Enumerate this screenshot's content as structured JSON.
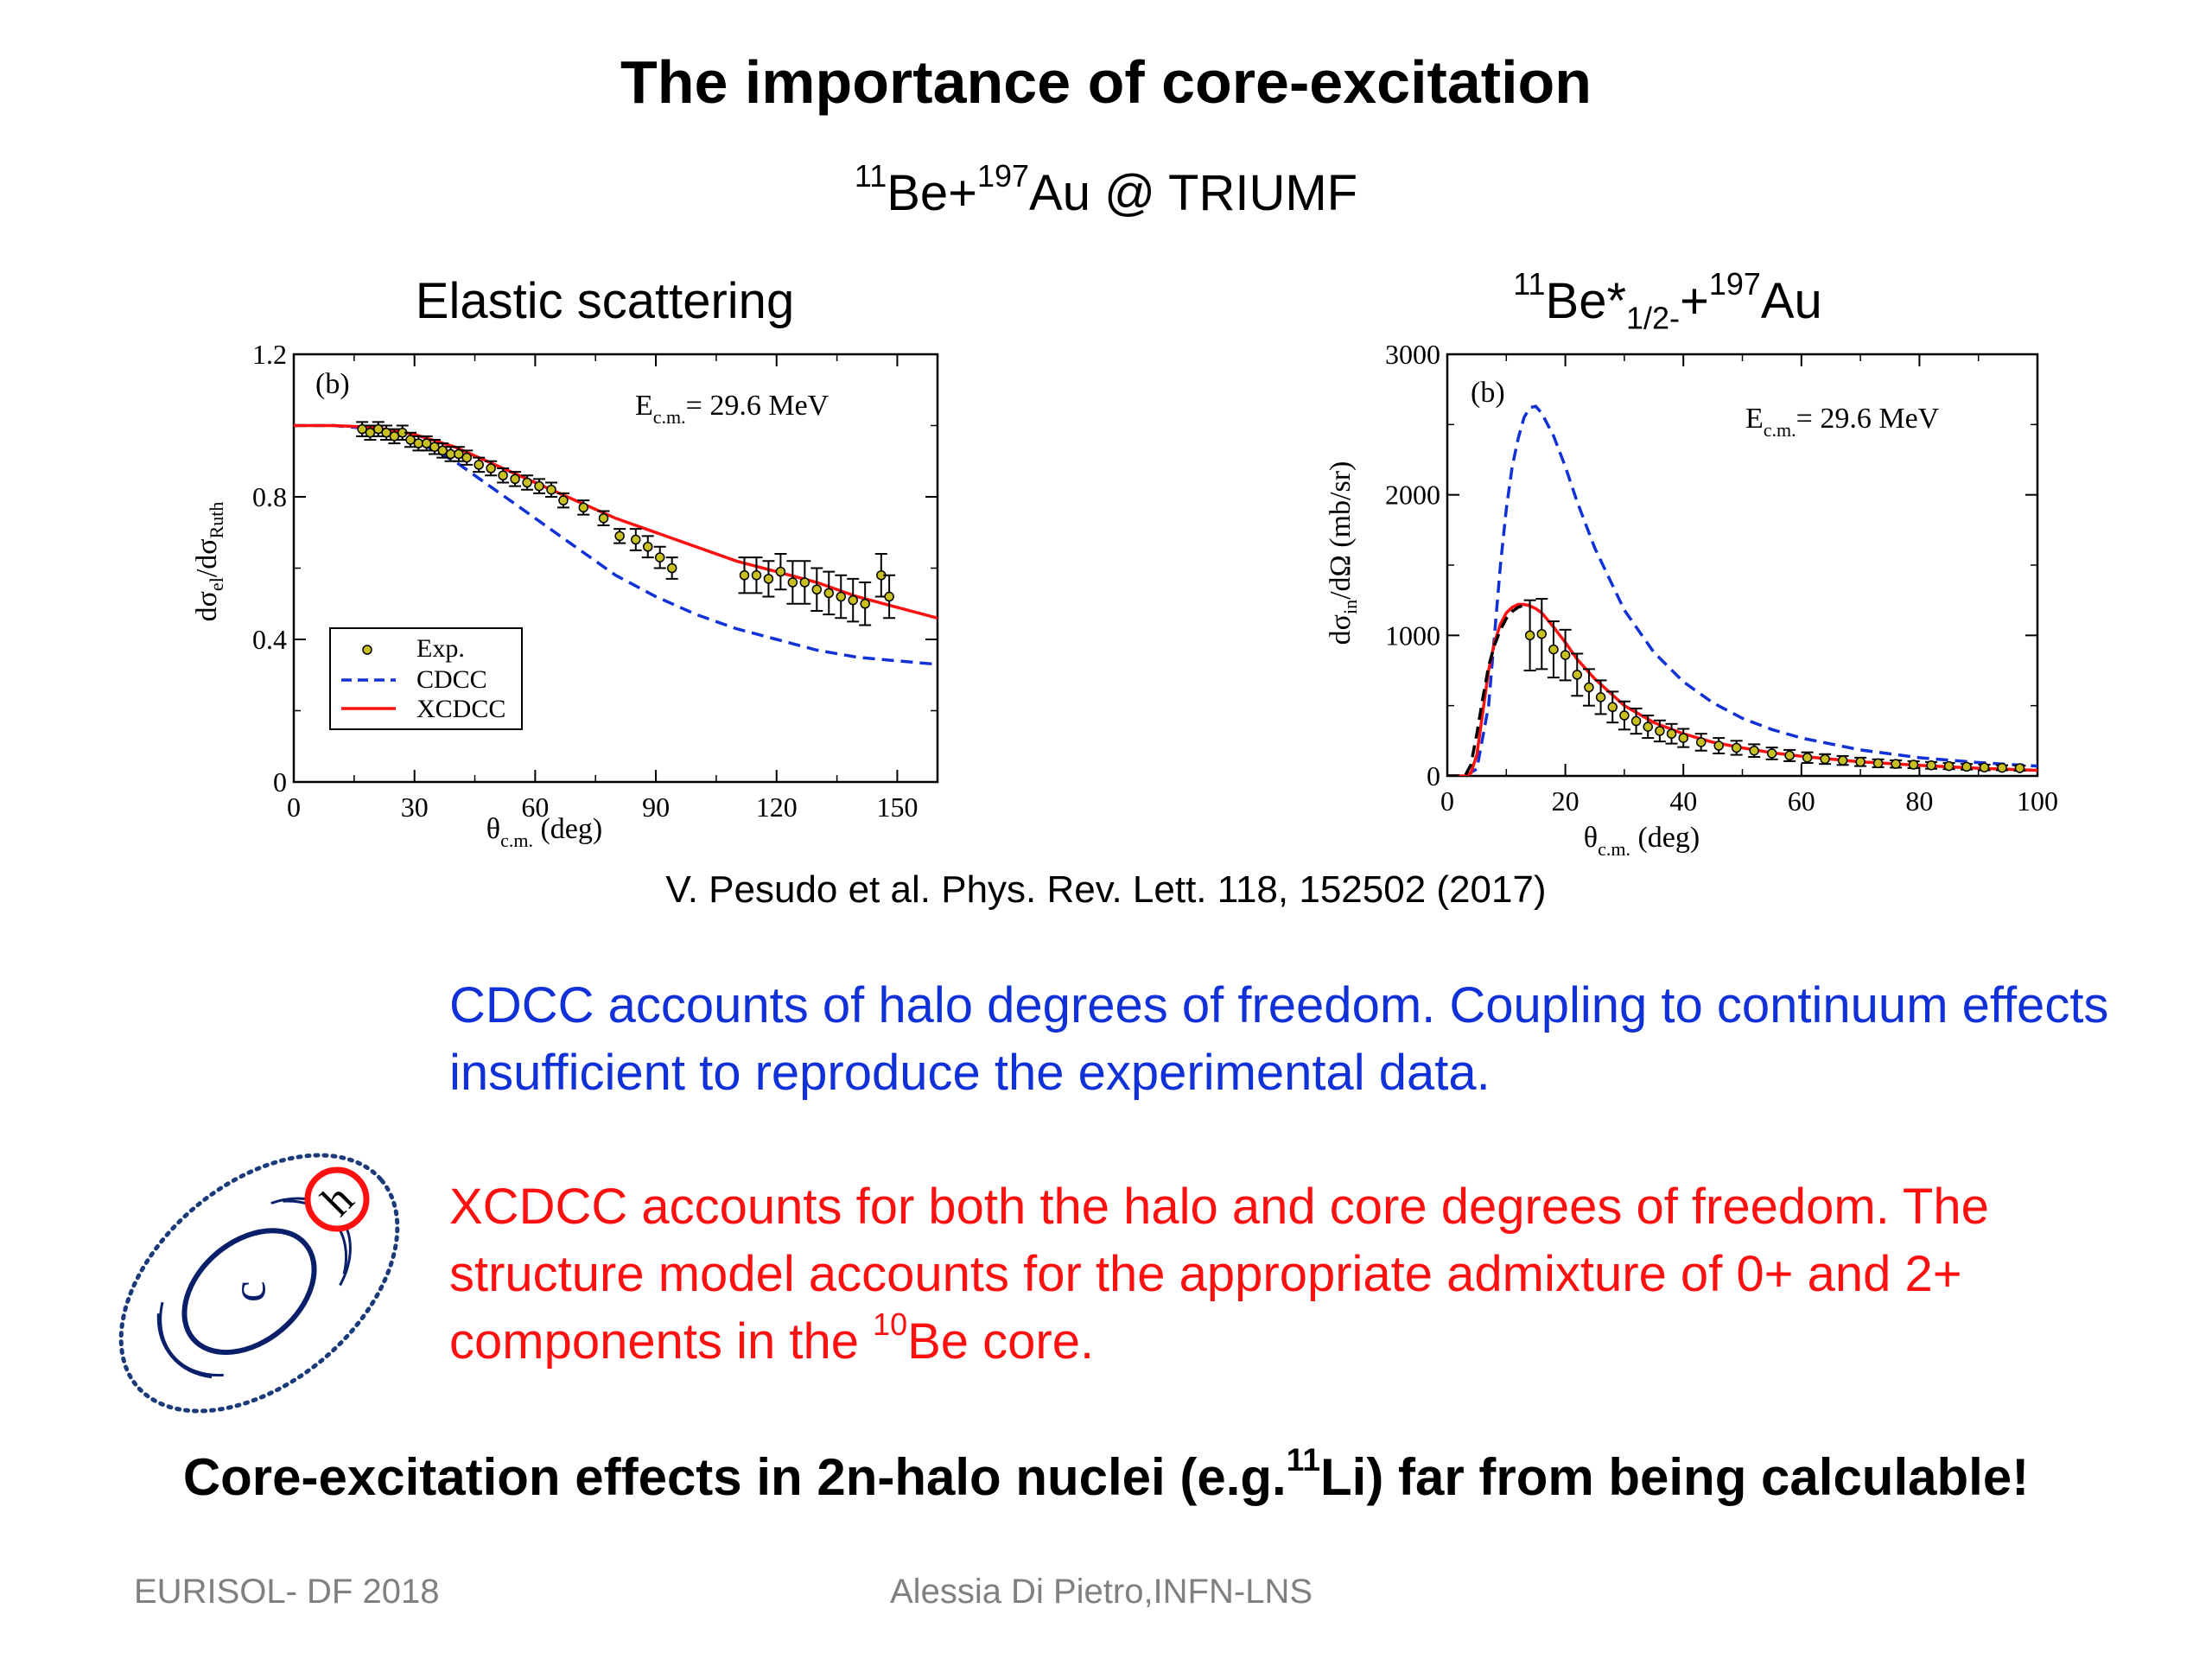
{
  "slide": {
    "title": "The importance of core-excitation",
    "subtitle": {
      "n1": "11",
      "e1": "Be+",
      "n2": "197",
      "e2": "Au @ TRIUMF"
    },
    "left_panel_title": "Elastic scattering",
    "right_panel_title": {
      "n1": "11",
      "e1": "Be*",
      "sub": "1/2-",
      "e2": "+",
      "n2": "197",
      "e3": "Au"
    },
    "reference": "V. Pesudo et al. Phys. Rev. Lett. 118, 152502 (2017)",
    "cdcc_text": "CDCC accounts of halo degrees of freedom. Coupling to continuum effects insufficient to reproduce the experimental data.",
    "xcdcc_text_a": "XCDCC accounts for both the halo and core degrees of freedom. The structure model accounts for the appropriate admixture of 0+ and 2+ components in the ",
    "xcdcc_text_sup": "10",
    "xcdcc_text_b": "Be core.",
    "conclusion_a": "Core-excitation effects in 2n-halo nuclei (e.g.",
    "conclusion_sup": "11",
    "conclusion_b": "Li)  far from being calculable!",
    "footer_left": "EURISOL- DF 2018",
    "footer_center": "Alessia Di Pietro,INFN-LNS",
    "diagram": {
      "core_label": "c",
      "halo_label": "h"
    },
    "colors": {
      "cdcc": "#1030d8",
      "xcdcc": "#ff1010",
      "footer": "#808080",
      "exp_marker": "#c8c020"
    }
  },
  "chart_data": [
    {
      "type": "line",
      "panel_label": "(b)",
      "annotation": {
        "main": "E",
        "sub": "c.m.",
        "rest": "= 29.6 MeV"
      },
      "xlabel": {
        "main": "θ",
        "sub": "c.m.",
        "rest": " (deg)"
      },
      "ylabel": {
        "a": "dσ",
        "sub1": "el",
        "b": "/dσ",
        "sub2": "Ruth"
      },
      "xlim": [
        0,
        160
      ],
      "ylim": [
        0,
        1.2
      ],
      "xticks": [
        0,
        30,
        60,
        90,
        120,
        150
      ],
      "yticks": [
        0,
        0.4,
        0.8,
        1.2
      ],
      "ytick_labels": [
        "0",
        "0.4",
        "0.8",
        "1.2"
      ],
      "legend": {
        "placement": "bottom-left",
        "entries": [
          "Exp.",
          "CDCC",
          "XCDCC"
        ]
      },
      "series": [
        {
          "name": "CDCC",
          "style": "dashed",
          "color": "#1030d8",
          "x": [
            0,
            10,
            20,
            30,
            40,
            50,
            60,
            70,
            80,
            90,
            100,
            110,
            120,
            130,
            140,
            150,
            160
          ],
          "y": [
            1.0,
            1.0,
            0.99,
            0.96,
            0.9,
            0.82,
            0.74,
            0.66,
            0.58,
            0.52,
            0.47,
            0.43,
            0.4,
            0.37,
            0.35,
            0.34,
            0.33
          ]
        },
        {
          "name": "XCDCC",
          "style": "solid",
          "color": "#ff1010",
          "x": [
            0,
            10,
            20,
            30,
            40,
            50,
            60,
            70,
            80,
            90,
            100,
            110,
            120,
            130,
            140,
            150,
            160
          ],
          "y": [
            1.0,
            1.0,
            0.995,
            0.975,
            0.94,
            0.89,
            0.84,
            0.79,
            0.74,
            0.7,
            0.66,
            0.62,
            0.59,
            0.56,
            0.52,
            0.49,
            0.46
          ]
        },
        {
          "name": "Exp.",
          "style": "markers",
          "color": "#c8c020",
          "x": [
            17,
            19,
            21,
            23,
            25,
            27,
            29,
            31,
            33,
            35,
            37,
            39,
            41,
            43,
            46,
            49,
            52,
            55,
            58,
            61,
            64,
            67,
            72,
            77,
            81,
            85,
            88,
            91,
            94,
            112,
            115,
            118,
            121,
            124,
            127,
            130,
            133,
            136,
            139,
            142,
            146,
            148
          ],
          "y": [
            0.99,
            0.98,
            0.99,
            0.98,
            0.97,
            0.98,
            0.96,
            0.95,
            0.95,
            0.94,
            0.93,
            0.92,
            0.92,
            0.91,
            0.89,
            0.88,
            0.86,
            0.85,
            0.84,
            0.83,
            0.82,
            0.79,
            0.77,
            0.74,
            0.69,
            0.68,
            0.66,
            0.63,
            0.6,
            0.58,
            0.58,
            0.57,
            0.59,
            0.56,
            0.56,
            0.54,
            0.53,
            0.52,
            0.51,
            0.5,
            0.58,
            0.52
          ],
          "err": [
            0.02,
            0.02,
            0.02,
            0.02,
            0.02,
            0.02,
            0.02,
            0.02,
            0.02,
            0.02,
            0.02,
            0.02,
            0.02,
            0.02,
            0.02,
            0.02,
            0.02,
            0.02,
            0.02,
            0.02,
            0.02,
            0.02,
            0.02,
            0.02,
            0.02,
            0.03,
            0.03,
            0.03,
            0.03,
            0.05,
            0.05,
            0.05,
            0.05,
            0.06,
            0.06,
            0.06,
            0.06,
            0.06,
            0.06,
            0.06,
            0.06,
            0.06
          ]
        }
      ]
    },
    {
      "type": "line",
      "panel_label": "(b)",
      "annotation": {
        "main": "E",
        "sub": "c.m.",
        "rest": "= 29.6 MeV"
      },
      "xlabel": {
        "main": "θ",
        "sub": "c.m.",
        "rest": " (deg)"
      },
      "ylabel": {
        "a": "dσ",
        "sub1": "in",
        "b": "/dΩ (mb/sr)"
      },
      "xlim": [
        0,
        100
      ],
      "ylim": [
        0,
        3000
      ],
      "xticks": [
        0,
        20,
        40,
        60,
        80,
        100
      ],
      "yticks": [
        0,
        1000,
        2000,
        3000
      ],
      "ytick_labels": [
        "0",
        "1000",
        "2000",
        "3000"
      ],
      "series": [
        {
          "name": "CDCC",
          "style": "dashed",
          "color": "#1030d8",
          "x": [
            0,
            3,
            5,
            7,
            8,
            9,
            10,
            11,
            12,
            13,
            14,
            15,
            16,
            18,
            20,
            22,
            25,
            30,
            35,
            40,
            45,
            50,
            55,
            60,
            70,
            80,
            90,
            100
          ],
          "y": [
            0,
            0,
            50,
            500,
            1000,
            1500,
            1900,
            2200,
            2400,
            2550,
            2620,
            2630,
            2580,
            2420,
            2200,
            1950,
            1620,
            1180,
            880,
            670,
            520,
            410,
            330,
            270,
            185,
            130,
            95,
            70
          ]
        },
        {
          "name": "XCDCC",
          "style": "solid",
          "color": "#ff1010",
          "x": [
            0,
            3,
            4,
            5,
            6,
            7,
            8,
            9,
            10,
            11,
            12,
            13,
            14,
            15,
            16,
            18,
            20,
            22,
            25,
            30,
            35,
            40,
            45,
            50,
            55,
            60,
            70,
            80,
            90,
            100
          ],
          "y": [
            0,
            0,
            20,
            150,
            450,
            750,
            950,
            1080,
            1160,
            1200,
            1220,
            1220,
            1210,
            1190,
            1160,
            1060,
            950,
            830,
            690,
            500,
            380,
            300,
            240,
            200,
            165,
            140,
            100,
            75,
            55,
            40
          ]
        },
        {
          "name": "",
          "style": "dashed",
          "color": "#000000",
          "x": [
            0,
            3,
            4,
            5,
            6,
            7,
            8,
            9,
            10,
            11,
            12,
            13,
            14
          ],
          "y": [
            0,
            0,
            80,
            300,
            550,
            780,
            930,
            1040,
            1120,
            1170,
            1200,
            1215,
            1220
          ]
        },
        {
          "name": "Exp.",
          "style": "markers",
          "color": "#c8c020",
          "x": [
            14,
            16,
            18,
            20,
            22,
            24,
            26,
            28,
            30,
            32,
            34,
            36,
            38,
            40,
            43,
            46,
            49,
            52,
            55,
            58,
            61,
            64,
            67,
            70,
            73,
            76,
            79,
            82,
            85,
            88,
            91,
            94,
            97
          ],
          "y": [
            1000,
            1010,
            900,
            860,
            720,
            630,
            560,
            490,
            430,
            390,
            350,
            320,
            300,
            270,
            240,
            215,
            200,
            180,
            160,
            145,
            130,
            120,
            110,
            100,
            90,
            85,
            80,
            75,
            70,
            65,
            60,
            58,
            55
          ],
          "err": [
            250,
            250,
            200,
            180,
            150,
            130,
            120,
            110,
            100,
            90,
            80,
            75,
            70,
            65,
            60,
            55,
            50,
            45,
            42,
            40,
            38,
            35,
            32,
            30,
            28,
            26,
            25,
            24,
            22,
            20,
            20,
            18,
            18
          ]
        }
      ]
    }
  ]
}
